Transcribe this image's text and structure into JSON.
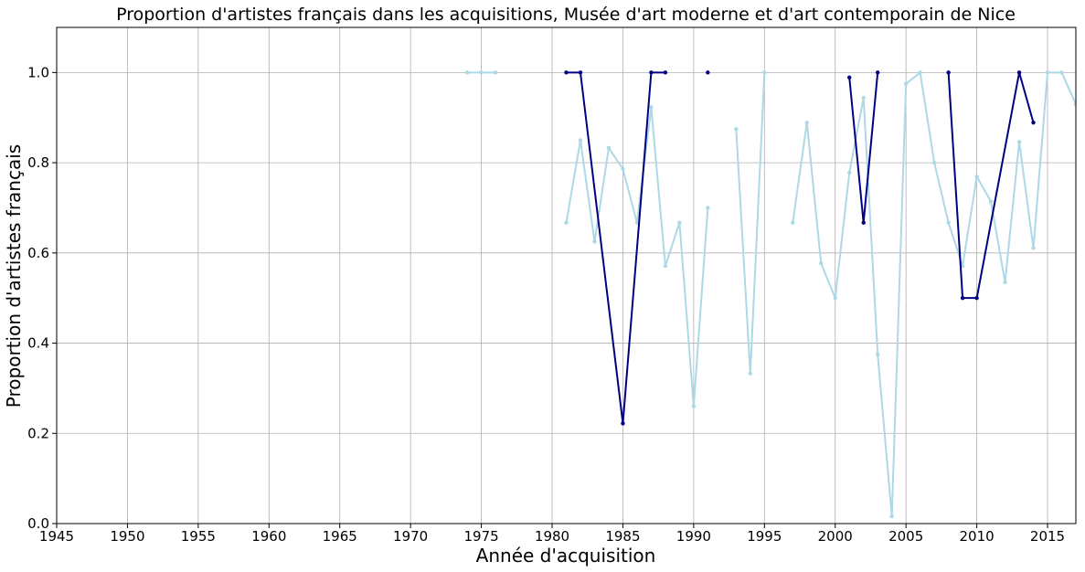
{
  "chart_data": {
    "type": "line",
    "title": "Proportion d'artistes français dans les acquisitions, Musée d'art moderne et d'art contemporain de Nice",
    "xlabel": "Année d'acquisition",
    "ylabel": "Proportion d'artistes français",
    "xlim": [
      1945,
      2017
    ],
    "ylim": [
      0,
      1.1
    ],
    "xticks": [
      "1945",
      "1950",
      "1955",
      "1960",
      "1965",
      "1970",
      "1975",
      "1980",
      "1985",
      "1990",
      "1995",
      "2000",
      "2005",
      "2010",
      "2015"
    ],
    "yticks": [
      "0.0",
      "0.2",
      "0.4",
      "0.6",
      "0.8",
      "1.0"
    ],
    "grid": true,
    "series": [
      {
        "color": "#add8e6",
        "points": [
          [
            1974,
            1.0
          ],
          [
            1975,
            1.0
          ],
          [
            1976,
            1.0
          ],
          [
            null,
            null
          ],
          [
            1981,
            0.667
          ],
          [
            1982,
            0.85
          ],
          [
            1983,
            0.625
          ],
          [
            1984,
            0.833
          ],
          [
            1985,
            0.786
          ],
          [
            1986,
            0.667
          ],
          [
            1987,
            0.923
          ],
          [
            1988,
            0.571
          ],
          [
            1989,
            0.667
          ],
          [
            1990,
            0.26
          ],
          [
            1991,
            0.7
          ],
          [
            null,
            null
          ],
          [
            1993,
            0.875
          ],
          [
            1994,
            0.333
          ],
          [
            1995,
            1.0
          ],
          [
            null,
            null
          ],
          [
            1997,
            0.667
          ],
          [
            1998,
            0.889
          ],
          [
            1999,
            0.577
          ],
          [
            2000,
            0.5
          ],
          [
            2001,
            0.778
          ],
          [
            2002,
            0.944
          ],
          [
            2003,
            0.375
          ],
          [
            2004,
            0.016
          ],
          [
            2005,
            0.975
          ],
          [
            2006,
            1.0
          ],
          [
            2007,
            0.8
          ],
          [
            2008,
            0.667
          ],
          [
            2009,
            0.571
          ],
          [
            2010,
            0.769
          ],
          [
            2011,
            0.714
          ],
          [
            2012,
            0.535
          ],
          [
            2013,
            0.846
          ],
          [
            2014,
            0.611
          ],
          [
            2015,
            1.0
          ],
          [
            2016,
            1.0
          ],
          [
            2017,
            0.93
          ]
        ]
      },
      {
        "color": "#000080",
        "points": [
          [
            1981,
            1.0
          ],
          [
            1982,
            1.0
          ],
          [
            1985,
            0.222
          ],
          [
            1987,
            1.0
          ],
          [
            1988,
            1.0
          ],
          [
            null,
            null
          ],
          [
            1991,
            1.0
          ],
          [
            null,
            null
          ],
          [
            2001,
            0.989
          ],
          [
            2002,
            0.667
          ],
          [
            2003,
            1.0
          ],
          [
            null,
            null
          ],
          [
            2008,
            1.0
          ],
          [
            2009,
            0.5
          ],
          [
            2010,
            0.5
          ],
          [
            2013,
            1.0
          ],
          [
            2014,
            0.889
          ]
        ]
      }
    ]
  }
}
